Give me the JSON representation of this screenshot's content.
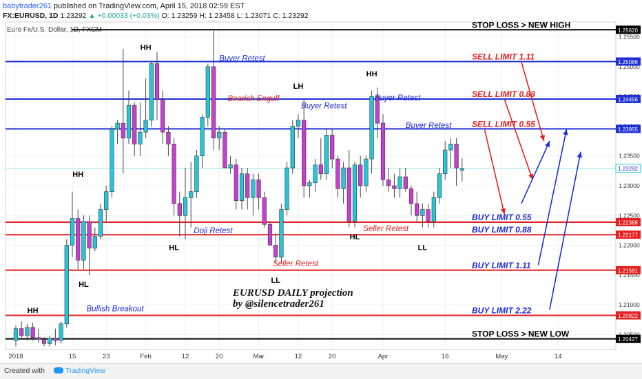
{
  "header": {
    "author": "babytrader261",
    "published": "published on TradingView.com, April 15, 2018 02:59 EST",
    "symbol": "FX:EURUSD, 1D",
    "last_value": "1.23292",
    "change": "▲ +0.00033 (+0.03%)",
    "ohlc": "O: 1.23259 H: 1.23458 L: 1.23071 C: 1.23292"
  },
  "footer": {
    "created_with": "Created with",
    "brand": "TradingView"
  },
  "colors": {
    "bull": "#26c6da",
    "bear": "#c63fcf",
    "blue_line": "#1e2ed8",
    "red_line": "#e52020",
    "black_line": "#000000",
    "sell_text": "#e52020",
    "buy_text": "#1e2ed8",
    "price_axis_label": "#1e2ed8"
  },
  "chart_data": {
    "type": "candlestick",
    "title": "Euro Fx/U.S. Dollar, 1D, FXCM",
    "ylim": [
      1.2025,
      1.2575
    ],
    "y_ticks": [
      "1.25500",
      "1.25000",
      "1.24500",
      "1.24000",
      "1.23500",
      "1.23000",
      "1.22500",
      "1.22000",
      "1.21500",
      "1.21000",
      "1.20500"
    ],
    "x_ticks": [
      {
        "label": "2018",
        "index": 0
      },
      {
        "label": "15",
        "index": 10
      },
      {
        "label": "23",
        "index": 16
      },
      {
        "label": "Feb",
        "index": 23
      },
      {
        "label": "12",
        "index": 30
      },
      {
        "label": "20",
        "index": 36
      },
      {
        "label": "Mar",
        "index": 43
      },
      {
        "label": "12",
        "index": 50
      },
      {
        "label": "20",
        "index": 56
      },
      {
        "label": "Apr",
        "index": 65
      },
      {
        "label": "16",
        "index": 76
      },
      {
        "label": "May",
        "index": 86
      },
      {
        "label": "14",
        "index": 96
      }
    ],
    "candles": [
      [
        1.204,
        1.2065,
        1.203,
        1.206
      ],
      [
        1.206,
        1.2072,
        1.2045,
        1.2048
      ],
      [
        1.2048,
        1.2068,
        1.204,
        1.2062
      ],
      [
        1.2062,
        1.207,
        1.204,
        1.2045
      ],
      [
        1.2045,
        1.206,
        1.2036,
        1.2042
      ],
      [
        1.2042,
        1.2046,
        1.203,
        1.2035
      ],
      [
        1.2035,
        1.2048,
        1.203,
        1.2044
      ],
      [
        1.2044,
        1.206,
        1.2032,
        1.204
      ],
      [
        1.204,
        1.2072,
        1.2035,
        1.2068
      ],
      [
        1.2068,
        1.221,
        1.2062,
        1.22
      ],
      [
        1.22,
        1.229,
        1.218,
        1.2245
      ],
      [
        1.2245,
        1.226,
        1.216,
        1.2175
      ],
      [
        1.2175,
        1.225,
        1.216,
        1.224
      ],
      [
        1.224,
        1.225,
        1.215,
        1.2195
      ],
      [
        1.2195,
        1.223,
        1.219,
        1.2215
      ],
      [
        1.2215,
        1.227,
        1.221,
        1.226
      ],
      [
        1.226,
        1.23,
        1.224,
        1.229
      ],
      [
        1.229,
        1.24,
        1.228,
        1.2395
      ],
      [
        1.2395,
        1.241,
        1.237,
        1.2405
      ],
      [
        1.2405,
        1.253,
        1.232,
        1.238
      ],
      [
        1.238,
        1.246,
        1.237,
        1.2435
      ],
      [
        1.2435,
        1.244,
        1.235,
        1.237
      ],
      [
        1.237,
        1.244,
        1.235,
        1.239
      ],
      [
        1.239,
        1.248,
        1.238,
        1.241
      ],
      [
        1.241,
        1.251,
        1.24,
        1.2505
      ],
      [
        1.2505,
        1.2525,
        1.241,
        1.2445
      ],
      [
        1.2445,
        1.246,
        1.237,
        1.239
      ],
      [
        1.239,
        1.24,
        1.235,
        1.237
      ],
      [
        1.237,
        1.238,
        1.225,
        1.227
      ],
      [
        1.227,
        1.229,
        1.2215,
        1.225
      ],
      [
        1.225,
        1.233,
        1.221,
        1.228
      ],
      [
        1.228,
        1.234,
        1.223,
        1.229
      ],
      [
        1.229,
        1.236,
        1.228,
        1.235
      ],
      [
        1.235,
        1.242,
        1.233,
        1.2415
      ],
      [
        1.2415,
        1.2505,
        1.24,
        1.25
      ],
      [
        1.25,
        1.256,
        1.236,
        1.238
      ],
      [
        1.238,
        1.24,
        1.236,
        1.239
      ],
      [
        1.239,
        1.2395,
        1.233,
        1.233
      ],
      [
        1.233,
        1.235,
        1.232,
        1.2335
      ],
      [
        1.2335,
        1.2345,
        1.226,
        1.2275
      ],
      [
        1.2275,
        1.233,
        1.226,
        1.232
      ],
      [
        1.232,
        1.233,
        1.226,
        1.228
      ],
      [
        1.228,
        1.232,
        1.225,
        1.231
      ],
      [
        1.231,
        1.232,
        1.226,
        1.228
      ],
      [
        1.228,
        1.229,
        1.223,
        1.2235
      ],
      [
        1.2235,
        1.224,
        1.22,
        1.22
      ],
      [
        1.22,
        1.222,
        1.217,
        1.218
      ],
      [
        1.218,
        1.227,
        1.217,
        1.226
      ],
      [
        1.226,
        1.234,
        1.225,
        1.233
      ],
      [
        1.233,
        1.241,
        1.232,
        1.24
      ],
      [
        1.24,
        1.242,
        1.238,
        1.241
      ],
      [
        1.241,
        1.2445,
        1.228,
        1.23
      ],
      [
        1.23,
        1.231,
        1.228,
        1.2305
      ],
      [
        1.2305,
        1.2345,
        1.229,
        1.2335
      ],
      [
        1.2335,
        1.238,
        1.231,
        1.232
      ],
      [
        1.232,
        1.2395,
        1.231,
        1.2385
      ],
      [
        1.2385,
        1.2395,
        1.233,
        1.2345
      ],
      [
        1.2345,
        1.235,
        1.228,
        1.2295
      ],
      [
        1.2295,
        1.234,
        1.227,
        1.233
      ],
      [
        1.233,
        1.236,
        1.223,
        1.224
      ],
      [
        1.224,
        1.234,
        1.223,
        1.2335
      ],
      [
        1.2335,
        1.235,
        1.228,
        1.23
      ],
      [
        1.23,
        1.235,
        1.229,
        1.2345
      ],
      [
        1.2345,
        1.246,
        1.232,
        1.245
      ],
      [
        1.245,
        1.2465,
        1.238,
        1.2405
      ],
      [
        1.2405,
        1.242,
        1.23,
        1.231
      ],
      [
        1.231,
        1.233,
        1.229,
        1.23
      ],
      [
        1.23,
        1.232,
        1.228,
        1.2295
      ],
      [
        1.2295,
        1.233,
        1.228,
        1.2315
      ],
      [
        1.2315,
        1.233,
        1.229,
        1.2295
      ],
      [
        1.2295,
        1.23,
        1.225,
        1.227
      ],
      [
        1.227,
        1.229,
        1.224,
        1.225
      ],
      [
        1.225,
        1.227,
        1.223,
        1.226
      ],
      [
        1.226,
        1.227,
        1.223,
        1.224
      ],
      [
        1.224,
        1.229,
        1.223,
        1.228
      ],
      [
        1.228,
        1.233,
        1.227,
        1.232
      ],
      [
        1.232,
        1.2375,
        1.231,
        1.236
      ],
      [
        1.236,
        1.238,
        1.233,
        1.237
      ],
      [
        1.237,
        1.238,
        1.23,
        1.233
      ],
      [
        1.2326,
        1.2346,
        1.2307,
        1.2329
      ]
    ],
    "levels": [
      {
        "price": 1.2562,
        "label": "1.25620",
        "color": "#000000",
        "width": 2,
        "text": "STOP LOSS > NEW HIGH",
        "text_color": "#000000"
      },
      {
        "price": 1.25086,
        "label": "1.25086",
        "color": "#1e2ed8",
        "width": 2,
        "text": "SELL LIMIT 1.11",
        "text_color": "#e52020"
      },
      {
        "price": 1.24456,
        "label": "1.24456",
        "color": "#1e2ed8",
        "width": 2,
        "text": "SELL LIMIT 0.88",
        "text_color": "#e52020"
      },
      {
        "price": 1.23955,
        "label": "1.23955",
        "color": "#1e2ed8",
        "width": 2,
        "text": "SELL LIMIT 0.55",
        "text_color": "#e52020"
      },
      {
        "price": 1.22388,
        "label": "1.22388",
        "color": "#e52020",
        "width": 2,
        "text": "BUY LIMIT 0.55",
        "text_color": "#1e2ed8"
      },
      {
        "price": 1.22177,
        "label": "1.22177",
        "color": "#e52020",
        "width": 2,
        "text": "BUY LIMIT 0.88",
        "text_color": "#1e2ed8"
      },
      {
        "price": 1.21581,
        "label": "1.21581",
        "color": "#e52020",
        "width": 2,
        "text": "BUY LIMIT 1.11",
        "text_color": "#1e2ed8"
      },
      {
        "price": 1.20822,
        "label": "1.20822",
        "color": "#e52020",
        "width": 2,
        "text": "BUY LIMIT 2.22",
        "text_color": "#1e2ed8"
      },
      {
        "price": 1.20427,
        "label": "1.20427",
        "color": "#000000",
        "width": 2,
        "text": "STOP LOSS > NEW LOW",
        "text_color": "#000000"
      }
    ],
    "current_price": {
      "price": 1.23292,
      "label": "1.23292"
    },
    "swing_labels": [
      {
        "text": "HH",
        "index": 3,
        "price": 1.2086
      },
      {
        "text": "HH",
        "index": 11,
        "price": 1.2315
      },
      {
        "text": "HL",
        "index": 12,
        "price": 1.213
      },
      {
        "text": "HH",
        "index": 23,
        "price": 1.2528
      },
      {
        "text": "HL",
        "index": 28,
        "price": 1.2192
      },
      {
        "text": "HH",
        "index": 35,
        "price": 1.2577
      },
      {
        "text": "LH",
        "index": 50,
        "price": 1.2463
      },
      {
        "text": "LL",
        "index": 46,
        "price": 1.2137
      },
      {
        "text": "HL",
        "index": 60,
        "price": 1.221
      },
      {
        "text": "HH",
        "index": 63,
        "price": 1.2484
      },
      {
        "text": "LL",
        "index": 72,
        "price": 1.2192
      }
    ],
    "annotations": [
      {
        "text": "Buyer Retest",
        "index": 36,
        "price": 1.251,
        "color": "#1e2ed8"
      },
      {
        "text": "Bearish Engulf",
        "index": 37.5,
        "price": 1.2442,
        "color": "#e52020"
      },
      {
        "text": "Buyer Retest",
        "index": 50.5,
        "price": 1.243,
        "color": "#1e2ed8"
      },
      {
        "text": "Buyer Retest",
        "index": 63.5,
        "price": 1.2443,
        "color": "#1e2ed8"
      },
      {
        "text": "Buyer Retest",
        "index": 69,
        "price": 1.2397,
        "color": "#1e2ed8"
      },
      {
        "text": "Doji Retest",
        "index": 31.5,
        "price": 1.222,
        "color": "#1e2ed8"
      },
      {
        "text": "Seller Retest",
        "index": 45.5,
        "price": 1.2165,
        "color": "#e52020"
      },
      {
        "text": "Seller Retest",
        "index": 61.5,
        "price": 1.2224,
        "color": "#e52020"
      },
      {
        "text": "Bullish Breakout",
        "index": 12.5,
        "price": 1.2089,
        "color": "#1e2ed8"
      }
    ],
    "projection_text": [
      "EURUSD DAILY projection",
      "by @silencetrader261"
    ],
    "sell_arrows": [
      {
        "from": [
          89.5,
          1.2508
        ],
        "to": [
          93.5,
          1.2375
        ]
      },
      {
        "from": [
          86.5,
          1.2445
        ],
        "to": [
          91.5,
          1.231
        ]
      },
      {
        "from": [
          83,
          1.2394
        ],
        "to": [
          86.5,
          1.2252
        ]
      }
    ],
    "buy_arrows": [
      {
        "from": [
          92.5,
          1.2167
        ],
        "to": [
          97.5,
          1.2395
        ]
      },
      {
        "from": [
          94.5,
          1.2092
        ],
        "to": [
          100,
          1.2357
        ]
      },
      {
        "from": [
          89.5,
          1.227
        ],
        "to": [
          94.5,
          1.2375
        ]
      }
    ]
  }
}
